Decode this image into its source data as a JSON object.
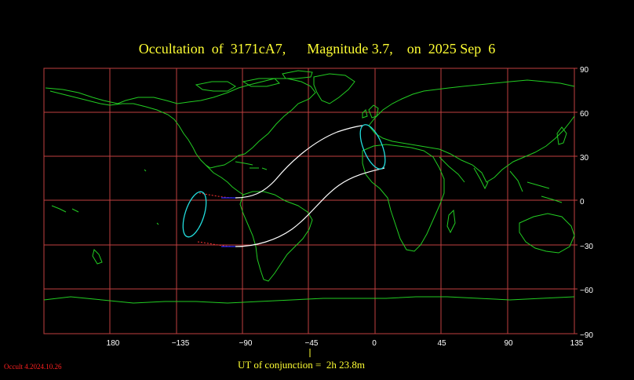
{
  "header": {
    "title": "Occultation  of  3171cA7,      Magnitude 3.7,    on  2025 Sep  6"
  },
  "map": {
    "longitude_labels": [
      "180",
      "−135",
      "−90",
      "−45",
      "0",
      "45",
      "90",
      "135"
    ],
    "latitude_labels": [
      "90",
      "60",
      "30",
      "0",
      "−30",
      "−60",
      "−90"
    ],
    "colors": {
      "background": "#000000",
      "grid": "#c04040",
      "coastline": "#22cc22",
      "path": "#ffffff",
      "terminator": "#22dddd",
      "dotted_extension": "#ff3333",
      "axis_label": "#ffffff"
    }
  },
  "footer": {
    "ut_conjunction": "UT of conjunction =  2h 23.8m",
    "credit": "Occult 4.2024.10.26"
  }
}
